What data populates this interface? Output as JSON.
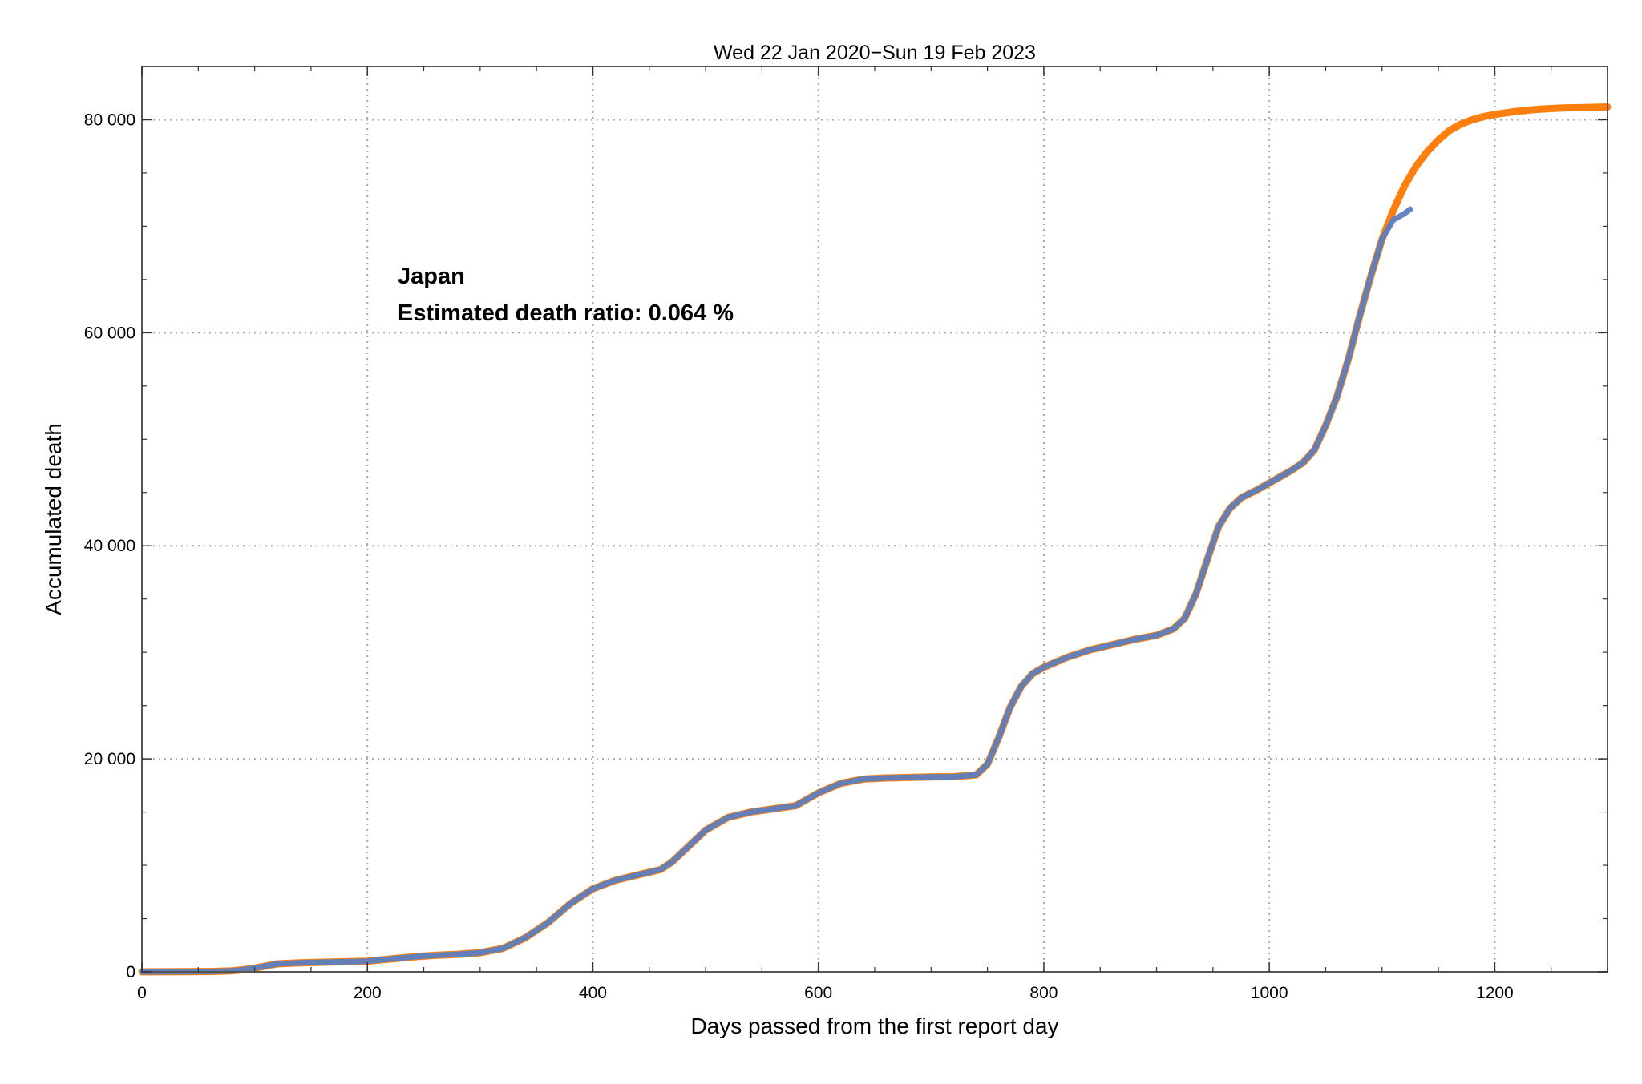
{
  "chart_data": {
    "type": "line",
    "title": "Wed 22 Jan 2020−Sun 19 Feb 2023",
    "xlabel": "Days passed from the first report day",
    "ylabel": "Accumulated death",
    "xlim": [
      0,
      1300
    ],
    "ylim": [
      0,
      85000
    ],
    "x_ticks": [
      0,
      200,
      400,
      600,
      800,
      1000,
      1200
    ],
    "x_tick_labels": [
      "0",
      "200",
      "400",
      "600",
      "800",
      "1000",
      "1200"
    ],
    "y_ticks": [
      0,
      20000,
      40000,
      60000,
      80000
    ],
    "y_tick_labels": [
      "0",
      "20 000",
      "40 000",
      "60 000",
      "80 000"
    ],
    "grid": true,
    "legend": "none",
    "annotation": {
      "country": "Japan",
      "death_ratio": "Estimated death ratio: 0.064 %"
    },
    "colors": {
      "fit": "#ff7f0e",
      "observed": "#5b7fbf",
      "grid": "#a9a9a9",
      "frame": "#555555"
    },
    "series": [
      {
        "kind": "fit",
        "x": [
          0,
          60,
          80,
          90,
          100,
          110,
          120,
          140,
          160,
          180,
          200,
          220,
          240,
          260,
          280,
          300,
          320,
          340,
          360,
          380,
          400,
          420,
          440,
          460,
          470,
          480,
          500,
          520,
          540,
          560,
          580,
          600,
          620,
          640,
          660,
          680,
          700,
          720,
          740,
          750,
          760,
          770,
          780,
          790,
          800,
          820,
          840,
          860,
          880,
          900,
          915,
          925,
          935,
          945,
          955,
          965,
          975,
          990,
          1000,
          1010,
          1020,
          1030,
          1040,
          1050,
          1060,
          1070,
          1080,
          1090,
          1100,
          1110,
          1120,
          1130,
          1140,
          1150,
          1160,
          1170,
          1180,
          1190,
          1200,
          1220,
          1240,
          1260,
          1280,
          1300
        ],
        "y": [
          0,
          30,
          100,
          200,
          350,
          550,
          750,
          850,
          900,
          950,
          1000,
          1200,
          1400,
          1550,
          1650,
          1800,
          2200,
          3200,
          4600,
          6400,
          7800,
          8600,
          9100,
          9600,
          10300,
          11300,
          13300,
          14500,
          15000,
          15300,
          15600,
          16800,
          17700,
          18100,
          18200,
          18250,
          18300,
          18320,
          18500,
          19500,
          22000,
          24800,
          26800,
          28000,
          28600,
          29500,
          30200,
          30700,
          31200,
          31600,
          32200,
          33200,
          35500,
          38700,
          41800,
          43500,
          44500,
          45300,
          45900,
          46500,
          47100,
          47800,
          49000,
          51300,
          54000,
          57500,
          61500,
          65300,
          68800,
          71500,
          73800,
          75600,
          77000,
          78100,
          79000,
          79600,
          80000,
          80300,
          80500,
          80800,
          81000,
          81100,
          81150,
          81200
        ]
      },
      {
        "kind": "observed",
        "x": [
          0,
          60,
          80,
          90,
          100,
          110,
          120,
          140,
          160,
          180,
          200,
          220,
          240,
          260,
          280,
          300,
          320,
          340,
          360,
          380,
          400,
          420,
          440,
          460,
          470,
          480,
          500,
          520,
          540,
          560,
          580,
          600,
          620,
          640,
          660,
          680,
          700,
          720,
          740,
          750,
          760,
          770,
          780,
          790,
          800,
          820,
          840,
          860,
          880,
          900,
          915,
          925,
          935,
          945,
          955,
          965,
          975,
          990,
          1000,
          1010,
          1020,
          1030,
          1040,
          1050,
          1060,
          1070,
          1080,
          1090,
          1100,
          1110,
          1120,
          1125
        ],
        "y": [
          0,
          30,
          100,
          200,
          350,
          550,
          750,
          850,
          900,
          950,
          1000,
          1200,
          1400,
          1550,
          1650,
          1800,
          2200,
          3200,
          4600,
          6400,
          7800,
          8600,
          9100,
          9600,
          10300,
          11300,
          13300,
          14500,
          15000,
          15300,
          15600,
          16800,
          17700,
          18100,
          18200,
          18250,
          18300,
          18320,
          18500,
          19500,
          22000,
          24800,
          26800,
          28000,
          28600,
          29500,
          30200,
          30700,
          31200,
          31600,
          32200,
          33200,
          35500,
          38700,
          41800,
          43500,
          44500,
          45300,
          45900,
          46500,
          47100,
          47800,
          49000,
          51300,
          54000,
          57500,
          61500,
          65300,
          68800,
          70600,
          71200,
          71600
        ]
      }
    ]
  }
}
